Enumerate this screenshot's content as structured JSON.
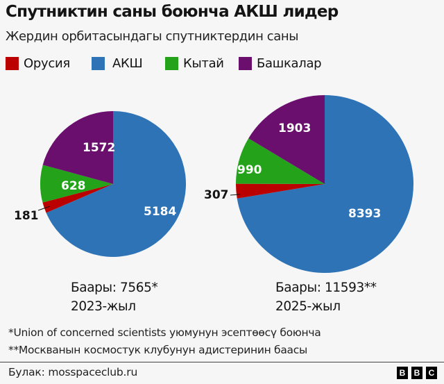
{
  "header": {
    "title": "Спутниктин саны боюнча АКШ лидер",
    "subtitle": "Жердин орбитасындагы спутниктердин саны"
  },
  "legend": [
    {
      "label": "Орусия",
      "color": "#bb0000"
    },
    {
      "label": "АКШ",
      "color": "#2e73b5"
    },
    {
      "label": "Кытай",
      "color": "#24a31a"
    },
    {
      "label": "Башкалар",
      "color": "#6b0f6f"
    }
  ],
  "totals": [
    {
      "line1": "Баары: 7565*",
      "line2": "2023-жыл"
    },
    {
      "line1": "Баары: 11593**",
      "line2": "2025-жыл"
    }
  ],
  "notes": {
    "note1": "*Union of concerned scientists уюмунун эсептөөсү боюнча",
    "note2": "**Москванын космостук клубунун адистеринин баасы"
  },
  "footer": {
    "source": "Булак: mosspaceclub.ru",
    "logo": [
      "B",
      "B",
      "C"
    ]
  },
  "chart_data": [
    {
      "type": "pie",
      "title": "2023-жыл",
      "total": 7565,
      "categories": [
        "АКШ",
        "Орусия",
        "Кытай",
        "Башкалар"
      ],
      "values": [
        5184,
        181,
        628,
        1572
      ],
      "colors": [
        "#2e73b5",
        "#bb0000",
        "#24a31a",
        "#6b0f6f"
      ],
      "start_angle": "12 o'clock, clockwise",
      "annotation": "Баары: 7565*"
    },
    {
      "type": "pie",
      "title": "2025-жыл",
      "total": 11593,
      "categories": [
        "АКШ",
        "Орусия",
        "Кытай",
        "Башкалар"
      ],
      "values": [
        8393,
        307,
        990,
        1903
      ],
      "colors": [
        "#2e73b5",
        "#bb0000",
        "#24a31a",
        "#6b0f6f"
      ],
      "start_angle": "12 o'clock, clockwise",
      "annotation": "Баары: 11593**"
    }
  ]
}
